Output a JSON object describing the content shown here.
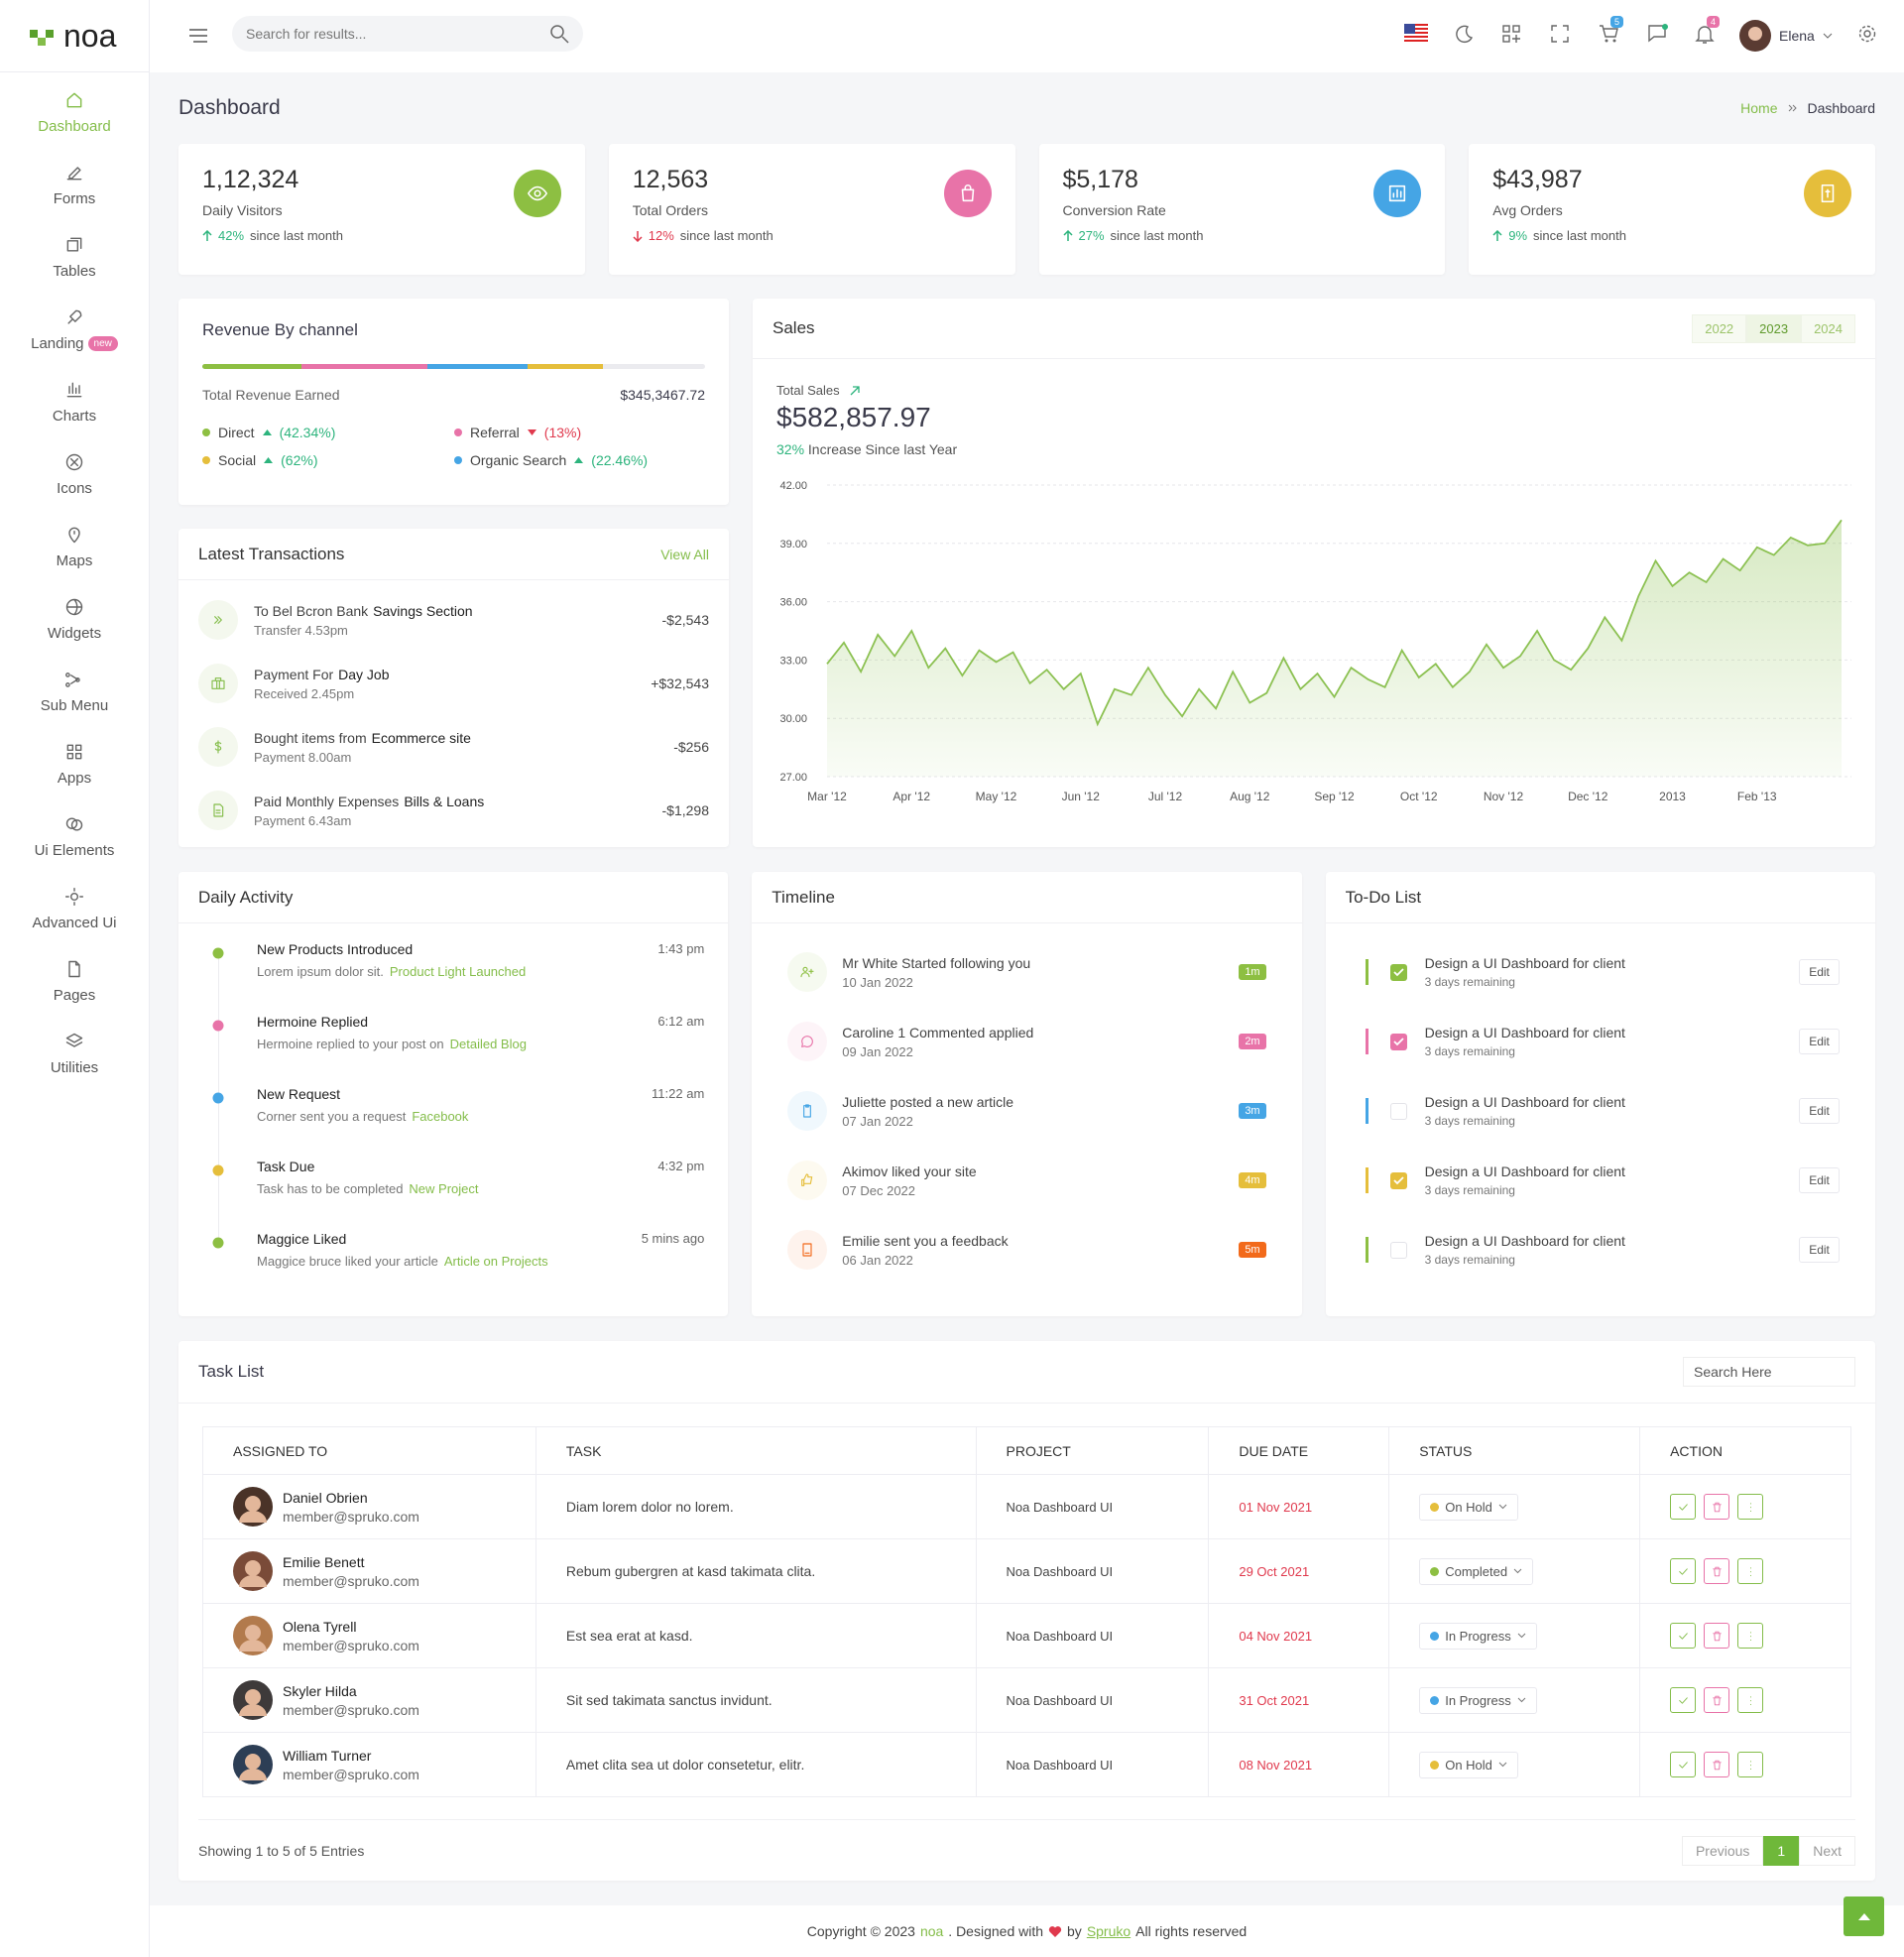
{
  "brand": "noa",
  "header": {
    "search_placeholder": "Search for results...",
    "cart_count": "5",
    "notification_count": "4",
    "user": "Elena"
  },
  "sidebar": [
    {
      "label": "Dashboard"
    },
    {
      "label": "Forms"
    },
    {
      "label": "Tables"
    },
    {
      "label": "Landing",
      "badge": "new"
    },
    {
      "label": "Charts"
    },
    {
      "label": "Icons"
    },
    {
      "label": "Maps"
    },
    {
      "label": "Widgets"
    },
    {
      "label": "Sub Menu"
    },
    {
      "label": "Apps"
    },
    {
      "label": "Ui Elements"
    },
    {
      "label": "Advanced Ui"
    },
    {
      "label": "Pages"
    },
    {
      "label": "Utilities"
    }
  ],
  "page": {
    "title": "Dashboard",
    "breadcrumb": [
      "Home",
      "Dashboard"
    ]
  },
  "stats": [
    {
      "value": "1,12,324",
      "label": "Daily Visitors",
      "change": "42%",
      "note": "since last month",
      "trend": "up",
      "color": "#8dbf42"
    },
    {
      "value": "12,563",
      "label": "Total Orders",
      "change": "12%",
      "note": "since last month",
      "trend": "down",
      "color": "#e873a8"
    },
    {
      "value": "$5,178",
      "label": "Conversion Rate",
      "change": "27%",
      "note": "since last month",
      "trend": "up",
      "color": "#45a5e5"
    },
    {
      "value": "$43,987",
      "label": "Avg Orders",
      "change": "9%",
      "note": "since last month",
      "trend": "up",
      "color": "#e5be3b"
    }
  ],
  "revenue": {
    "title": "Revenue By channel",
    "total_label": "Total Revenue Earned",
    "total": "$345,3467.72",
    "channels": [
      {
        "name": "Direct",
        "change": "(42.34%)",
        "trend": "up",
        "color": "#8dbf42"
      },
      {
        "name": "Referral",
        "change": "(13%)",
        "trend": "down",
        "color": "#e873a8"
      },
      {
        "name": "Social",
        "change": "(62%)",
        "trend": "up",
        "color": "#e5be3b"
      },
      {
        "name": "Organic Search",
        "change": "(22.46%)",
        "trend": "up",
        "color": "#45a5e5"
      }
    ]
  },
  "transactions": {
    "title": "Latest Transactions",
    "action": "View All",
    "items": [
      {
        "text": "To Bel Bcron Bank",
        "bold": "Savings Section",
        "sub": "Transfer 4.53pm",
        "amount": "-$2,543"
      },
      {
        "text": "Payment For",
        "bold": "Day Job",
        "sub": "Received 2.45pm",
        "amount": "+$32,543"
      },
      {
        "text": "Bought items from",
        "bold": "Ecommerce site",
        "sub": "Payment 8.00am",
        "amount": "-$256"
      },
      {
        "text": "Paid Monthly Expenses",
        "bold": "Bills & Loans",
        "sub": "Payment 6.43am",
        "amount": "-$1,298"
      }
    ]
  },
  "sales": {
    "years": [
      "2022",
      "2023",
      "2024"
    ],
    "active_year": "2023",
    "total_label": "Total Sales",
    "total": "$582,857.97",
    "increase": "32%",
    "increase_text": "Increase Since last Year"
  },
  "chart_data": {
    "type": "line",
    "title": "Sales",
    "color": "#8cc152",
    "grid": true,
    "categories": [
      "Mar '12",
      null,
      null,
      null,
      null,
      "Apr '12",
      null,
      null,
      null,
      null,
      "May '12",
      null,
      null,
      null,
      null,
      "Jun '12",
      null,
      null,
      null,
      null,
      "Jul '12",
      null,
      null,
      null,
      null,
      "Aug '12",
      null,
      null,
      null,
      null,
      "Sep '12",
      null,
      null,
      null,
      null,
      "Oct '12",
      null,
      null,
      null,
      null,
      "Nov '12",
      null,
      null,
      null,
      null,
      "Dec '12",
      null,
      null,
      null,
      null,
      "2013",
      null,
      null,
      null,
      null,
      "Feb '13",
      null,
      null,
      null,
      null,
      null
    ],
    "values": [
      32.8,
      33.9,
      32.4,
      34.3,
      33.2,
      34.5,
      32.6,
      33.6,
      32.2,
      33.5,
      32.9,
      33.4,
      31.8,
      32.5,
      31.5,
      32.3,
      29.7,
      31.5,
      31.2,
      32.6,
      31.2,
      30.1,
      31.5,
      30.5,
      32.4,
      30.8,
      31.3,
      33.1,
      31.5,
      32.3,
      31.1,
      32.6,
      32.0,
      31.6,
      33.5,
      32.1,
      32.8,
      31.6,
      32.4,
      33.8,
      32.6,
      33.2,
      34.5,
      33.0,
      32.5,
      33.6,
      35.2,
      34.0,
      36.3,
      38.1,
      36.8,
      37.5,
      37.0,
      38.2,
      37.6,
      38.8,
      38.4,
      39.3,
      38.9,
      39.0,
      40.2
    ],
    "ylim": [
      27,
      42
    ],
    "yticks": [
      {
        "value": 27,
        "label": "27.00"
      },
      {
        "value": 30,
        "label": "30.00"
      },
      {
        "value": 33,
        "label": "33.00"
      },
      {
        "value": 36,
        "label": "36.00"
      },
      {
        "value": 39,
        "label": "39.00"
      },
      {
        "value": 42,
        "label": "42.00"
      }
    ]
  },
  "activity": {
    "title": "Daily Activity",
    "items": [
      {
        "title": "New Products Introduced",
        "time": "1:43 pm",
        "text": "Lorem ipsum dolor sit.",
        "link": "Product Light Launched",
        "color": "#8dbf42"
      },
      {
        "title": "Hermoine Replied",
        "time": "6:12 am",
        "text": "Hermoine replied to your post on",
        "link": "Detailed Blog",
        "color": "#e873a8"
      },
      {
        "title": "New Request",
        "time": "11:22 am",
        "text": "Corner sent you a request",
        "link": "Facebook",
        "color": "#45a5e5"
      },
      {
        "title": "Task Due",
        "time": "4:32 pm",
        "text": "Task has to be completed",
        "link": "New Project",
        "color": "#e5be3b"
      },
      {
        "title": "Maggice Liked",
        "time": "5 mins ago",
        "text": "Maggice bruce liked your article",
        "link": "Article on Projects",
        "color": "#8dbf42"
      }
    ]
  },
  "timeline": {
    "title": "Timeline",
    "items": [
      {
        "text": "Mr White Started following you",
        "date": "10 Jan 2022",
        "badge": "1m",
        "color": "#8dbf42"
      },
      {
        "text": "Caroline 1 Commented applied",
        "date": "09 Jan 2022",
        "badge": "2m",
        "color": "#e873a8"
      },
      {
        "text": "Juliette posted a new article",
        "date": "07 Jan 2022",
        "badge": "3m",
        "color": "#45a5e5"
      },
      {
        "text": "Akimov liked your site",
        "date": "07 Dec 2022",
        "badge": "4m",
        "color": "#e5be3b"
      },
      {
        "text": "Emilie sent you a feedback",
        "date": "06 Jan 2022",
        "badge": "5m",
        "color": "#f26a1b"
      }
    ]
  },
  "todo": {
    "title": "To-Do List",
    "items": [
      {
        "text": "Design a UI Dashboard for client",
        "sub": "3 days remaining",
        "checked": true,
        "color": "#8dbf42",
        "action": "Edit"
      },
      {
        "text": "Design a UI Dashboard for client",
        "sub": "3 days remaining",
        "checked": true,
        "color": "#e873a8",
        "action": "Edit"
      },
      {
        "text": "Design a UI Dashboard for client",
        "sub": "3 days remaining",
        "checked": false,
        "color": "#45a5e5",
        "action": "Edit"
      },
      {
        "text": "Design a UI Dashboard for client",
        "sub": "3 days remaining",
        "checked": true,
        "color": "#e5be3b",
        "action": "Edit"
      },
      {
        "text": "Design a UI Dashboard for client",
        "sub": "3 days remaining",
        "checked": false,
        "color": "#8dbf42",
        "action": "Edit"
      }
    ]
  },
  "tasks": {
    "title": "Task List",
    "search_placeholder": "Search Here",
    "columns": [
      "ASSIGNED TO",
      "TASK",
      "PROJECT",
      "DUE DATE",
      "STATUS",
      "ACTION"
    ],
    "rows": [
      {
        "name": "Daniel Obrien",
        "email": "member@spruko.com",
        "task": "Diam lorem dolor no lorem.",
        "project": "Noa Dashboard UI",
        "due": "01 Nov 2021",
        "status": "On Hold",
        "status_color": "#e5be3b"
      },
      {
        "name": "Emilie Benett",
        "email": "member@spruko.com",
        "task": "Rebum gubergren at kasd takimata clita.",
        "project": "Noa Dashboard UI",
        "due": "29 Oct 2021",
        "status": "Completed",
        "status_color": "#8dbf42"
      },
      {
        "name": "Olena Tyrell",
        "email": "member@spruko.com",
        "task": "Est sea erat at kasd.",
        "project": "Noa Dashboard UI",
        "due": "04 Nov 2021",
        "status": "In Progress",
        "status_color": "#45a5e5"
      },
      {
        "name": "Skyler Hilda",
        "email": "member@spruko.com",
        "task": "Sit sed takimata sanctus invidunt.",
        "project": "Noa Dashboard UI",
        "due": "31 Oct 2021",
        "status": "In Progress",
        "status_color": "#45a5e5"
      },
      {
        "name": "William Turner",
        "email": "member@spruko.com",
        "task": "Amet clita sea ut dolor consetetur, elitr.",
        "project": "Noa Dashboard UI",
        "due": "08 Nov 2021",
        "status": "On Hold",
        "status_color": "#e5be3b"
      }
    ],
    "summary": "Showing 1 to 5 of 5 Entries",
    "pagination": [
      "Previous",
      "1",
      "Next"
    ]
  },
  "footer": {
    "copyright": "Copyright © 2023",
    "brand": "noa",
    "designed": ". Designed with",
    "by": "by",
    "company": "Spruko",
    "rights": "All rights reserved"
  }
}
